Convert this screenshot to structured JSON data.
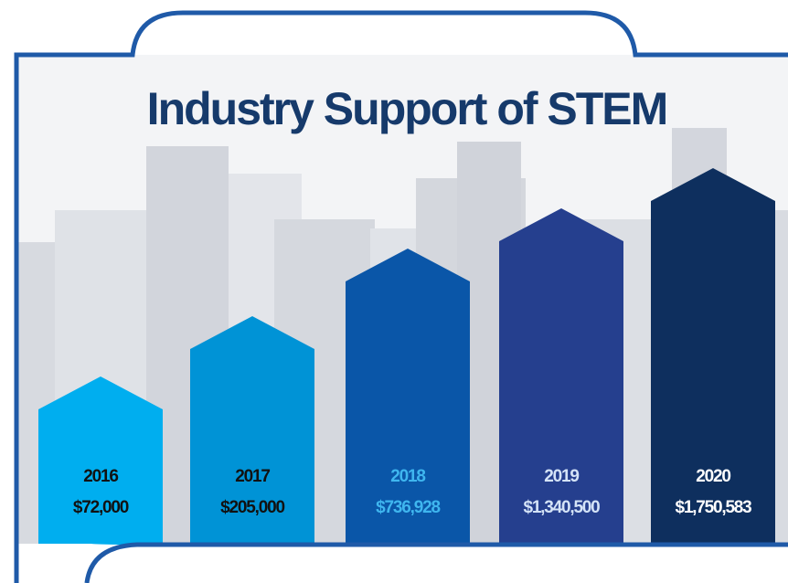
{
  "header": {
    "title": "Industry Support of STEM"
  },
  "items": [
    {
      "year": "2016",
      "amount": "$72,000",
      "color": "#00aeef",
      "text_color": "#111111"
    },
    {
      "year": "2017",
      "amount": "$205,000",
      "color": "#0093d6",
      "text_color": "#111111"
    },
    {
      "year": "2018",
      "amount": "$736,928",
      "color": "#0a56a8",
      "text_color": "#3fb6ef"
    },
    {
      "year": "2019",
      "amount": "$1,340,500",
      "color": "#253f8e",
      "text_color": "#d4e3f7"
    },
    {
      "year": "2020",
      "amount": "$1,750,583",
      "color": "#0e2f5e",
      "text_color": "#ffffff"
    }
  ]
}
